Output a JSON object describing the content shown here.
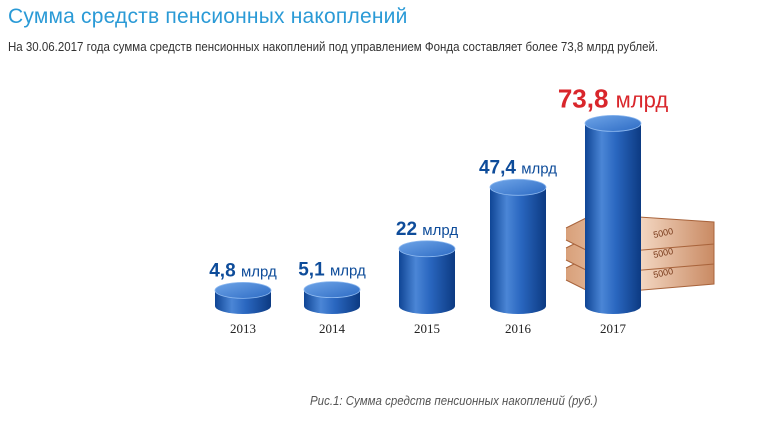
{
  "header": {
    "title": "Сумма средств пенсионных накоплений",
    "subtitle": "На 30.06.2017 года сумма средств пенсионных накоплений под управлением Фонда составляет более 73,8 млрд рублей."
  },
  "chart_data": {
    "type": "bar",
    "categories": [
      "2013",
      "2014",
      "2015",
      "2016",
      "2017"
    ],
    "values": [
      4.8,
      5.1,
      22,
      47.4,
      73.8
    ],
    "value_labels": [
      "4,8 млрд",
      "5,1 млрд",
      "22 млрд",
      "47,4 млрд",
      "73,8 млрд"
    ],
    "highlight_index": 4,
    "banknote_label": "5000",
    "colors": {
      "bar": "#1f5fb8",
      "bar_light": "#5e97e0",
      "bar_dark": "#0e3f8c",
      "label": "#0e4c9a",
      "highlight": "#d9262b"
    }
  },
  "caption": "Рис.1: Сумма средств пенсионных накоплений (руб.)"
}
